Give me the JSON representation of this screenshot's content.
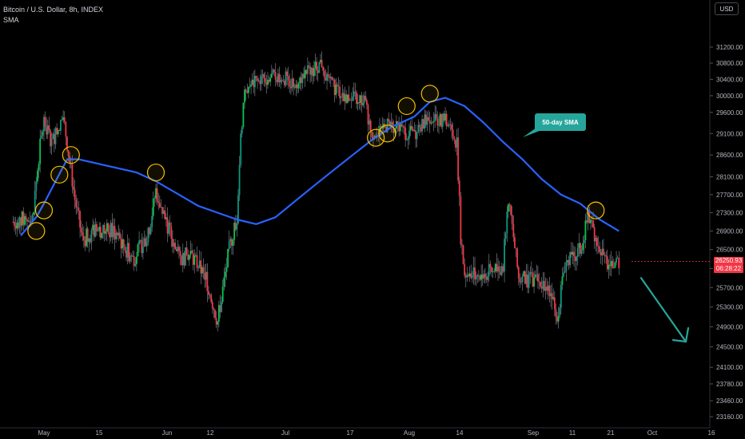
{
  "header": {
    "symbol_title": "Bitcoin / U.S. Dollar, 8h, INDEX",
    "indicator": "SMA",
    "currency": "USD"
  },
  "price_tag": {
    "price": "26250.93",
    "countdown": "06:28:22",
    "color": "#f23645"
  },
  "annotation": {
    "label": "50-day SMA",
    "color": "#26a69a"
  },
  "chart_data": {
    "type": "candlestick",
    "title": "Bitcoin / U.S. Dollar, 8h, INDEX",
    "y_axis": {
      "ticks": [
        31200,
        30800,
        30400,
        30000,
        29600,
        29100,
        28600,
        28100,
        27700,
        27300,
        26900,
        26500,
        26100,
        25700,
        25300,
        24900,
        24500,
        24100,
        23780,
        23460,
        23160
      ],
      "tick_labels": [
        "31200.00",
        "30800.00",
        "30400.00",
        "30000.00",
        "29600.00",
        "29100.00",
        "28600.00",
        "28100.00",
        "27700.00",
        "27300.00",
        "26900.00",
        "26500.00",
        "26100.00",
        "25700.00",
        "25300.00",
        "24900.00",
        "24500.00",
        "24100.00",
        "23780.00",
        "23460.00",
        "23160.00"
      ],
      "scale": "log",
      "side": "right"
    },
    "x_axis": {
      "tick_labels": [
        "May",
        "15",
        "Jun",
        "12",
        "Jul",
        "17",
        "Aug",
        "14",
        "Sep",
        "11",
        "21",
        "Oct",
        "16"
      ]
    },
    "colors": {
      "up": "#089981",
      "down": "#f23645",
      "up_bright": "#00c853",
      "sma": "#2962ff",
      "marker": "#f0c000",
      "arrow": "#26a69a"
    },
    "series": [
      {
        "name": "SMA",
        "type": "line",
        "points": [
          [
            "Apr 25",
            26800
          ],
          [
            "Apr 29",
            27200
          ],
          [
            "May 1",
            27500
          ],
          [
            "May 4",
            28000
          ],
          [
            "May 7",
            28500
          ],
          [
            "May 10",
            28500
          ],
          [
            "May 15",
            28400
          ],
          [
            "May 20",
            28300
          ],
          [
            "May 25",
            28200
          ],
          [
            "May 30",
            28000
          ],
          [
            "Jun 5",
            27700
          ],
          [
            "Jun 10",
            27450
          ],
          [
            "Jun 15",
            27300
          ],
          [
            "Jun 20",
            27150
          ],
          [
            "Jun 25",
            27050
          ],
          [
            "Jun 30",
            27200
          ],
          [
            "Jul 5",
            27550
          ],
          [
            "Jul 10",
            27900
          ],
          [
            "Jul 15",
            28250
          ],
          [
            "Jul 20",
            28600
          ],
          [
            "Jul 25",
            28950
          ],
          [
            "Jul 30",
            29250
          ],
          [
            "Aug 5",
            29500
          ],
          [
            "Aug 9",
            29850
          ],
          [
            "Aug 13",
            29950
          ],
          [
            "Aug 18",
            29750
          ],
          [
            "Aug 23",
            29350
          ],
          [
            "Aug 28",
            28900
          ],
          [
            "Sep 2",
            28500
          ],
          [
            "Sep 7",
            28050
          ],
          [
            "Sep 12",
            27700
          ],
          [
            "Sep 17",
            27500
          ],
          [
            "Sep 22",
            27150
          ],
          [
            "Sep 27",
            26900
          ]
        ]
      }
    ],
    "highlighted_touches": [
      "Apr 29",
      "May 1",
      "May 5",
      "May 8",
      "May 30",
      "Jul 26",
      "Jul 29",
      "Aug 3",
      "Aug 9",
      "Sep 21"
    ],
    "projection": {
      "type": "arrow",
      "direction": "down",
      "from": [
        "Sep 28",
        25900
      ],
      "to": [
        "Oct 15",
        24500
      ]
    },
    "last_price": 26250.93
  }
}
